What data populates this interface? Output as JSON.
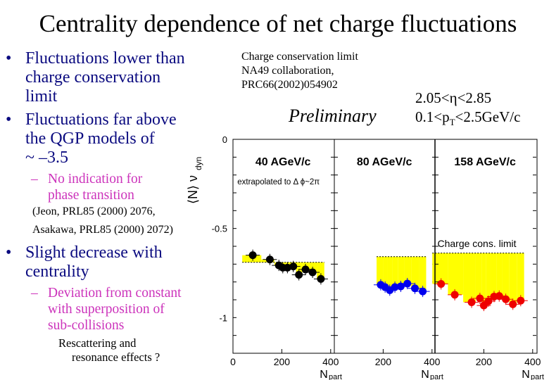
{
  "title": "Centrality dependence of net charge fluctuations",
  "bullets": {
    "b1": [
      "Fluctuations lower than",
      "charge conservation",
      "limit"
    ],
    "b2": [
      "Fluctuations far above",
      "the QGP models of",
      "~ –3.5"
    ],
    "b2_sub": [
      "No indication for",
      "phase transition"
    ],
    "refs": [
      "(Jeon, PRL85 (2000) 2076,",
      "Asakawa, PRL85 (2000) 2072)"
    ],
    "b3": [
      "Slight decrease with",
      "centrality"
    ],
    "b3_sub": [
      "Deviation from constant",
      "with superposition of",
      "sub-collisions"
    ],
    "b3_note": [
      "Rescattering and",
      "resonance effects ?"
    ],
    "bullet_glyph": "•",
    "dash_glyph": "–"
  },
  "annotations": {
    "source": [
      "Charge conservation limit",
      "NA49 collaboration,",
      "PRC66(2002)054902"
    ],
    "preliminary": "Preliminary",
    "eta_cut": "2.05<η<2.85",
    "pt_cut_pre": "0.1<p",
    "pt_cut_sub": "T",
    "pt_cut_post": "<2.5GeV/c"
  },
  "chart_data": {
    "type": "scatter",
    "ylabel": "⟨N⟩ ν",
    "ylabel_sub": "dyn",
    "xlabel": "N",
    "xlabel_sub": "part",
    "ylim": [
      -1.2,
      0
    ],
    "xlim": [
      0,
      415
    ],
    "yticks": [
      {
        "v": 0,
        "label": "0"
      },
      {
        "v": -0.5,
        "label": "-0.5"
      },
      {
        "v": -1,
        "label": "-1"
      }
    ],
    "xticks": [
      {
        "v": 0,
        "label": "0"
      },
      {
        "v": 200,
        "label": "200"
      },
      {
        "v": 400,
        "label": "400"
      }
    ],
    "band_color": "#ffff00",
    "limit_label": "Charge cons. limit",
    "panel_note": "extrapolated to  Δ ϕ~2π",
    "panels": [
      {
        "title": "40 AGeV/c",
        "color": "#000000",
        "charge_limit": -0.69,
        "x": [
          81,
          151,
          188,
          204,
          223,
          247,
          270,
          297,
          326,
          360
        ],
        "y": [
          -0.65,
          -0.674,
          -0.707,
          -0.72,
          -0.72,
          -0.713,
          -0.76,
          -0.73,
          -0.746,
          -0.783
        ]
      },
      {
        "title": "80 AGeV/c",
        "color": "#0000ee",
        "charge_limit": -0.658,
        "x": [
          190,
          208,
          227,
          248,
          272,
          299,
          330,
          362
        ],
        "y": [
          -0.816,
          -0.829,
          -0.846,
          -0.829,
          -0.825,
          -0.809,
          -0.836,
          -0.853
        ]
      },
      {
        "title": "158 AGeV/c",
        "color": "#ee0000",
        "charge_limit": -0.638,
        "x": [
          25,
          81,
          150,
          184,
          200,
          219,
          242,
          263,
          290,
          319,
          351
        ],
        "y": [
          -0.811,
          -0.872,
          -0.914,
          -0.892,
          -0.932,
          -0.908,
          -0.882,
          -0.879,
          -0.897,
          -0.925,
          -0.905
        ]
      }
    ]
  }
}
